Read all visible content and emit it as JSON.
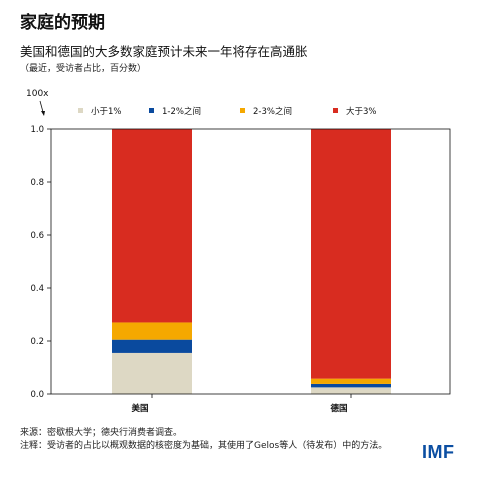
{
  "header": {
    "title": "家庭的预期",
    "subtitle": "美国和德国的大多数家庭预计未来一年将存在高通胀",
    "note": "（最近，受访者占比，百分数）",
    "unit_label": "100x"
  },
  "footer": {
    "source": "来源：密歇根大学；德央行消费者调查。",
    "notes": "注释：受访者的占比以概观数据的核密度为基础，其使用了Gelos等人（待发布）中的方法。",
    "logo": "IMF"
  },
  "chart_data": {
    "type": "bar",
    "stacked": true,
    "categories": [
      "美国",
      "德国"
    ],
    "series": [
      {
        "name": "小于1%",
        "color": "#ddd8c4",
        "values": [
          0.155,
          0.025
        ]
      },
      {
        "name": "1-2%之间",
        "color": "#0a4a9e",
        "values": [
          0.05,
          0.013
        ]
      },
      {
        "name": "2-3%之间",
        "color": "#f5a800",
        "values": [
          0.065,
          0.02
        ]
      },
      {
        "name": "大于3%",
        "color": "#d82c20",
        "values": [
          0.73,
          0.942
        ]
      }
    ],
    "ylim": [
      0,
      1
    ],
    "yticks": [
      0.0,
      0.2,
      0.4,
      0.6,
      0.8,
      1.0
    ],
    "ytick_labels": [
      "0.0",
      "0.2",
      "0.4",
      "0.6",
      "0.8",
      "1.0"
    ],
    "legend_position": "top",
    "grid": false
  }
}
